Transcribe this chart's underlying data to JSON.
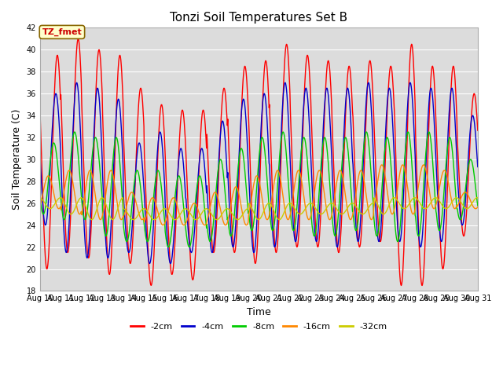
{
  "title": "Tonzi Soil Temperatures Set B",
  "xlabel": "Time",
  "ylabel": "Soil Temperature (C)",
  "ylim": [
    18,
    42
  ],
  "yticks": [
    18,
    20,
    22,
    24,
    26,
    28,
    30,
    32,
    34,
    36,
    38,
    40,
    42
  ],
  "start_day": 10,
  "end_day": 31,
  "annotation_text": "TZ_fmet",
  "bg_color": "#dcdcdc",
  "series_colors": [
    "#ff0000",
    "#0000cc",
    "#00cc00",
    "#ff8800",
    "#cccc00"
  ],
  "series_labels": [
    "-2cm",
    "-4cm",
    "-8cm",
    "-16cm",
    "-32cm"
  ],
  "red_peaks": [
    39.5,
    41.0,
    40.0,
    39.5,
    36.5,
    35.0,
    34.5,
    34.5,
    36.5,
    38.5,
    39.0,
    40.5,
    39.5,
    39.0,
    38.5,
    39.0,
    38.5,
    40.5,
    38.5,
    38.5,
    36.0
  ],
  "red_troughs": [
    20.0,
    21.5,
    21.0,
    19.5,
    20.5,
    18.5,
    19.5,
    19.0,
    21.5,
    21.5,
    20.5,
    21.5,
    22.0,
    22.0,
    21.5,
    22.0,
    22.5,
    18.5,
    18.5,
    20.0,
    23.0
  ],
  "blue_peaks": [
    36.0,
    37.0,
    36.5,
    35.5,
    31.5,
    32.5,
    31.0,
    31.0,
    33.5,
    35.5,
    36.0,
    37.0,
    36.5,
    36.5,
    36.5,
    37.0,
    36.5,
    37.0,
    36.5,
    36.5,
    34.0
  ],
  "blue_troughs": [
    24.0,
    21.5,
    21.0,
    21.0,
    21.5,
    20.5,
    20.5,
    21.5,
    21.5,
    22.0,
    21.5,
    22.0,
    22.5,
    22.5,
    22.0,
    22.5,
    22.5,
    22.5,
    22.0,
    22.5,
    24.0
  ],
  "green_peaks": [
    31.5,
    32.5,
    32.0,
    32.0,
    29.0,
    29.0,
    28.5,
    28.5,
    30.0,
    31.0,
    32.0,
    32.5,
    32.0,
    32.0,
    32.0,
    32.5,
    32.0,
    32.5,
    32.5,
    32.0,
    30.0
  ],
  "green_troughs": [
    25.0,
    24.5,
    24.5,
    23.0,
    22.5,
    22.5,
    22.0,
    22.0,
    22.5,
    23.0,
    23.5,
    23.5,
    23.5,
    23.0,
    23.0,
    23.5,
    23.0,
    22.5,
    23.0,
    23.5,
    24.5
  ],
  "orange_peaks": [
    28.5,
    29.0,
    29.0,
    29.0,
    27.0,
    26.5,
    26.5,
    26.0,
    27.0,
    27.5,
    28.5,
    29.0,
    29.0,
    29.0,
    29.0,
    29.0,
    29.5,
    29.5,
    29.5,
    29.0,
    27.0
  ],
  "orange_troughs": [
    25.5,
    25.0,
    24.5,
    24.5,
    24.5,
    24.0,
    24.0,
    24.0,
    24.0,
    24.0,
    24.5,
    24.5,
    24.5,
    24.5,
    24.5,
    24.5,
    25.0,
    25.0,
    25.5,
    25.5,
    25.5
  ],
  "yellow_peaks": [
    26.5,
    26.5,
    26.5,
    26.5,
    25.5,
    25.5,
    25.5,
    25.5,
    25.5,
    25.5,
    26.0,
    26.0,
    26.0,
    26.0,
    26.0,
    26.0,
    26.5,
    26.5,
    26.5,
    26.5,
    26.5
  ],
  "yellow_troughs": [
    25.5,
    25.0,
    24.5,
    24.5,
    24.5,
    24.5,
    24.5,
    24.5,
    24.5,
    24.5,
    24.5,
    24.5,
    25.0,
    25.0,
    25.0,
    25.0,
    25.0,
    25.5,
    25.5,
    25.5,
    25.5
  ],
  "phase_offsets": [
    0.0,
    0.07,
    0.17,
    0.43,
    0.85
  ]
}
